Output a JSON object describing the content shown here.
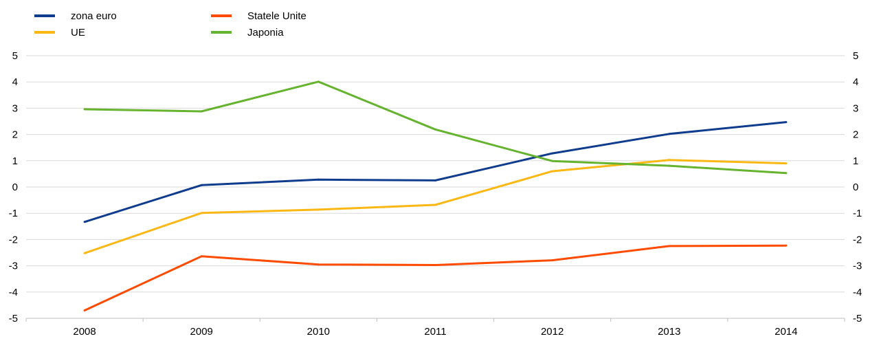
{
  "chart_data": {
    "type": "line",
    "title": "",
    "xlabel": "",
    "ylabel": "",
    "categories": [
      "2008",
      "2009",
      "2010",
      "2011",
      "2012",
      "2013",
      "2014"
    ],
    "ylim": [
      -5,
      5
    ],
    "yticks": [
      5,
      4,
      3,
      2,
      1,
      0,
      -1,
      -2,
      -3,
      -4,
      -5
    ],
    "ytick_labels": [
      "5",
      "4",
      "3",
      "2",
      "1",
      "0",
      "-1",
      "-2",
      "-3",
      "-4",
      "-5"
    ],
    "secondary_y_axis": true,
    "grid": "horizontal",
    "legend_position": "top-left",
    "series": [
      {
        "name": "zona euro",
        "color": "#0f3c8c",
        "values": [
          -1.33,
          0.07,
          0.28,
          0.25,
          1.28,
          2.02,
          2.47
        ]
      },
      {
        "name": "UE",
        "color": "#fbb714",
        "values": [
          -2.52,
          -0.99,
          -0.86,
          -0.68,
          0.6,
          1.03,
          0.9
        ]
      },
      {
        "name": "Statele Unite",
        "color": "#ff4b00",
        "values": [
          -4.7,
          -2.64,
          -2.95,
          -2.97,
          -2.79,
          -2.25,
          -2.23
        ]
      },
      {
        "name": "Japonia",
        "color": "#65b32e",
        "values": [
          2.96,
          2.88,
          4.01,
          2.19,
          0.99,
          0.81,
          0.53
        ]
      }
    ]
  }
}
